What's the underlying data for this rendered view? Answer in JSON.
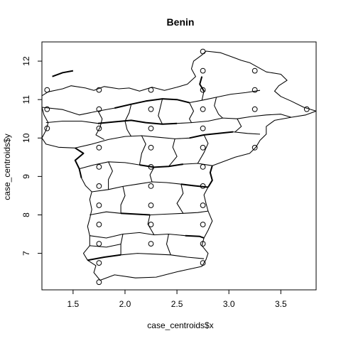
{
  "chart_data": {
    "type": "scatter",
    "title": "Benin",
    "xlabel": "case_centroids$x",
    "ylabel": "case_centroids$y",
    "xlim": [
      1.2,
      3.84
    ],
    "ylim": [
      6.05,
      12.5
    ],
    "xticks": [
      1.5,
      2.0,
      2.5,
      3.0,
      3.5
    ],
    "xtick_labels": [
      "1.5",
      "2.0",
      "2.5",
      "3.0",
      "3.5"
    ],
    "yticks": [
      7,
      8,
      9,
      10,
      11,
      12
    ],
    "ytick_labels": [
      "7",
      "8",
      "9",
      "10",
      "11",
      "12"
    ],
    "grid": false,
    "legend": "none",
    "points": [
      {
        "x": 2.75,
        "y": 12.25
      },
      {
        "x": 2.75,
        "y": 11.75
      },
      {
        "x": 3.25,
        "y": 11.75
      },
      {
        "x": 1.25,
        "y": 11.25
      },
      {
        "x": 1.75,
        "y": 11.25
      },
      {
        "x": 2.25,
        "y": 11.25
      },
      {
        "x": 2.75,
        "y": 11.25
      },
      {
        "x": 3.25,
        "y": 11.25
      },
      {
        "x": 1.25,
        "y": 10.75
      },
      {
        "x": 1.75,
        "y": 10.75
      },
      {
        "x": 2.25,
        "y": 10.75
      },
      {
        "x": 2.75,
        "y": 10.75
      },
      {
        "x": 3.25,
        "y": 10.75
      },
      {
        "x": 3.75,
        "y": 10.75
      },
      {
        "x": 1.25,
        "y": 10.25
      },
      {
        "x": 1.75,
        "y": 10.25
      },
      {
        "x": 2.25,
        "y": 10.25
      },
      {
        "x": 2.75,
        "y": 10.25
      },
      {
        "x": 1.75,
        "y": 9.75
      },
      {
        "x": 2.25,
        "y": 9.75
      },
      {
        "x": 2.75,
        "y": 9.75
      },
      {
        "x": 3.25,
        "y": 9.75
      },
      {
        "x": 1.75,
        "y": 9.25
      },
      {
        "x": 2.25,
        "y": 9.25
      },
      {
        "x": 2.75,
        "y": 9.25
      },
      {
        "x": 1.75,
        "y": 8.75
      },
      {
        "x": 2.25,
        "y": 8.75
      },
      {
        "x": 2.75,
        "y": 8.75
      },
      {
        "x": 1.75,
        "y": 8.25
      },
      {
        "x": 2.25,
        "y": 8.25
      },
      {
        "x": 2.75,
        "y": 8.25
      },
      {
        "x": 1.75,
        "y": 7.75
      },
      {
        "x": 2.25,
        "y": 7.75
      },
      {
        "x": 2.75,
        "y": 7.75
      },
      {
        "x": 1.75,
        "y": 7.25
      },
      {
        "x": 2.25,
        "y": 7.25
      },
      {
        "x": 2.75,
        "y": 7.25
      },
      {
        "x": 1.75,
        "y": 6.75
      },
      {
        "x": 2.75,
        "y": 6.75
      },
      {
        "x": 1.75,
        "y": 6.25
      }
    ],
    "boundaries": [
      [
        [
          1.2,
          11.1
        ],
        [
          1.26,
          11.2
        ],
        [
          1.4,
          11.28
        ],
        [
          1.48,
          11.36
        ],
        [
          1.62,
          11.3
        ],
        [
          1.7,
          11.24
        ],
        [
          1.8,
          11.34
        ],
        [
          1.94,
          11.28
        ],
        [
          2.04,
          11.3
        ],
        [
          2.14,
          11.22
        ],
        [
          2.26,
          11.32
        ],
        [
          2.38,
          11.24
        ],
        [
          2.5,
          11.32
        ],
        [
          2.6,
          11.4
        ],
        [
          2.68,
          11.6
        ],
        [
          2.64,
          11.8
        ],
        [
          2.66,
          12.0
        ],
        [
          2.74,
          12.16
        ],
        [
          2.78,
          12.26
        ],
        [
          2.92,
          12.22
        ],
        [
          3.04,
          12.1
        ],
        [
          3.12,
          12.02
        ],
        [
          3.2,
          11.96
        ],
        [
          3.28,
          11.84
        ],
        [
          3.36,
          11.72
        ],
        [
          3.5,
          11.66
        ],
        [
          3.56,
          11.5
        ],
        [
          3.48,
          11.36
        ],
        [
          3.44,
          11.22
        ],
        [
          3.5,
          11.08
        ],
        [
          3.6,
          10.96
        ],
        [
          3.72,
          10.8
        ],
        [
          3.84,
          10.7
        ],
        [
          3.74,
          10.6
        ],
        [
          3.6,
          10.54
        ],
        [
          3.44,
          10.46
        ],
        [
          3.36,
          10.3
        ],
        [
          3.36,
          10.1
        ],
        [
          3.3,
          9.94
        ],
        [
          3.26,
          9.76
        ],
        [
          3.2,
          9.6
        ],
        [
          3.06,
          9.5
        ],
        [
          2.96,
          9.4
        ],
        [
          2.84,
          9.28
        ],
        [
          2.82,
          9.1
        ],
        [
          2.84,
          8.9
        ],
        [
          2.8,
          8.72
        ],
        [
          2.76,
          8.52
        ],
        [
          2.78,
          8.3
        ],
        [
          2.8,
          8.1
        ],
        [
          2.84,
          7.84
        ],
        [
          2.8,
          7.6
        ],
        [
          2.76,
          7.4
        ],
        [
          2.74,
          7.2
        ],
        [
          2.8,
          7.0
        ],
        [
          2.78,
          6.84
        ],
        [
          2.74,
          6.66
        ],
        [
          2.5,
          6.52
        ],
        [
          2.3,
          6.38
        ],
        [
          2.1,
          6.36
        ],
        [
          1.9,
          6.44
        ],
        [
          1.76,
          6.3
        ],
        [
          1.7,
          6.5
        ],
        [
          1.72,
          6.68
        ],
        [
          1.64,
          6.82
        ],
        [
          1.6,
          7.0
        ],
        [
          1.66,
          7.2
        ],
        [
          1.66,
          7.46
        ],
        [
          1.64,
          7.7
        ],
        [
          1.66,
          7.9
        ],
        [
          1.68,
          8.14
        ],
        [
          1.66,
          8.4
        ],
        [
          1.68,
          8.6
        ],
        [
          1.62,
          8.76
        ],
        [
          1.58,
          8.96
        ],
        [
          1.56,
          9.2
        ],
        [
          1.52,
          9.42
        ],
        [
          1.6,
          9.6
        ],
        [
          1.52,
          9.74
        ],
        [
          1.36,
          9.76
        ],
        [
          1.24,
          9.84
        ],
        [
          1.2,
          10.0
        ],
        [
          1.24,
          10.2
        ],
        [
          1.26,
          10.4
        ],
        [
          1.22,
          10.6
        ],
        [
          1.2,
          10.8
        ],
        [
          1.2,
          11.1
        ]
      ],
      [
        [
          1.2,
          10.8
        ],
        [
          1.4,
          10.74
        ],
        [
          1.56,
          10.6
        ],
        [
          1.74,
          10.7
        ],
        [
          1.9,
          10.78
        ],
        [
          2.06,
          10.88
        ],
        [
          2.2,
          10.96
        ],
        [
          2.36,
          11.02
        ],
        [
          2.5,
          11.0
        ],
        [
          2.62,
          10.92
        ],
        [
          2.74,
          10.98
        ],
        [
          2.88,
          11.06
        ],
        [
          3.02,
          11.14
        ],
        [
          3.16,
          11.18
        ],
        [
          3.3,
          11.24
        ]
      ],
      [
        [
          1.24,
          10.4
        ],
        [
          1.4,
          10.44
        ],
        [
          1.58,
          10.44
        ],
        [
          1.74,
          10.38
        ],
        [
          1.9,
          10.42
        ],
        [
          2.06,
          10.46
        ],
        [
          2.2,
          10.4
        ],
        [
          2.36,
          10.36
        ],
        [
          2.5,
          10.38
        ],
        [
          2.64,
          10.4
        ],
        [
          2.8,
          10.44
        ],
        [
          2.94,
          10.52
        ],
        [
          3.08,
          10.5
        ],
        [
          3.22,
          10.56
        ],
        [
          3.36,
          10.6
        ],
        [
          3.5,
          10.62
        ],
        [
          3.6,
          10.54
        ]
      ],
      [
        [
          1.52,
          9.74
        ],
        [
          1.68,
          9.84
        ],
        [
          1.84,
          9.96
        ],
        [
          2.0,
          10.04
        ],
        [
          2.16,
          10.06
        ],
        [
          2.32,
          10.02
        ],
        [
          2.48,
          9.98
        ],
        [
          2.62,
          10.0
        ],
        [
          2.76,
          10.08
        ],
        [
          2.9,
          10.12
        ],
        [
          3.04,
          10.16
        ],
        [
          3.18,
          10.12
        ],
        [
          3.3,
          10.1
        ]
      ],
      [
        [
          1.56,
          9.2
        ],
        [
          1.7,
          9.3
        ],
        [
          1.84,
          9.38
        ],
        [
          2.0,
          9.36
        ],
        [
          2.14,
          9.3
        ],
        [
          2.28,
          9.24
        ],
        [
          2.42,
          9.26
        ],
        [
          2.56,
          9.32
        ],
        [
          2.7,
          9.34
        ],
        [
          2.84,
          9.28
        ]
      ],
      [
        [
          1.68,
          8.6
        ],
        [
          1.84,
          8.66
        ],
        [
          1.98,
          8.74
        ],
        [
          2.12,
          8.8
        ],
        [
          2.26,
          8.86
        ],
        [
          2.4,
          8.84
        ],
        [
          2.54,
          8.8
        ],
        [
          2.66,
          8.76
        ],
        [
          2.8,
          8.72
        ]
      ],
      [
        [
          1.66,
          8.0
        ],
        [
          1.82,
          8.08
        ],
        [
          1.96,
          8.04
        ],
        [
          2.1,
          8.02
        ],
        [
          2.24,
          8.0
        ],
        [
          2.4,
          8.02
        ],
        [
          2.56,
          8.04
        ],
        [
          2.7,
          8.06
        ],
        [
          2.8,
          8.1
        ]
      ],
      [
        [
          1.66,
          7.46
        ],
        [
          1.82,
          7.4
        ],
        [
          1.98,
          7.5
        ],
        [
          2.14,
          7.54
        ],
        [
          2.28,
          7.48
        ],
        [
          2.42,
          7.5
        ],
        [
          2.58,
          7.46
        ],
        [
          2.72,
          7.44
        ]
      ],
      [
        [
          1.64,
          6.82
        ],
        [
          1.8,
          6.9
        ],
        [
          1.96,
          6.96
        ],
        [
          2.12,
          7.0
        ],
        [
          2.28,
          6.98
        ],
        [
          2.44,
          6.96
        ],
        [
          2.6,
          6.9
        ],
        [
          2.76,
          6.86
        ]
      ],
      [
        [
          1.74,
          10.7
        ],
        [
          1.78,
          10.5
        ],
        [
          1.76,
          10.28
        ],
        [
          1.72,
          10.08
        ],
        [
          1.8,
          9.96
        ]
      ],
      [
        [
          2.06,
          10.88
        ],
        [
          2.04,
          10.66
        ],
        [
          2.0,
          10.44
        ],
        [
          2.02,
          10.22
        ],
        [
          2.06,
          10.04
        ]
      ],
      [
        [
          2.36,
          11.02
        ],
        [
          2.34,
          10.8
        ],
        [
          2.32,
          10.58
        ],
        [
          2.36,
          10.36
        ]
      ],
      [
        [
          2.62,
          10.92
        ],
        [
          2.66,
          10.7
        ],
        [
          2.62,
          10.5
        ],
        [
          2.64,
          10.4
        ]
      ],
      [
        [
          2.88,
          11.06
        ],
        [
          2.86,
          10.84
        ],
        [
          2.9,
          10.62
        ],
        [
          2.94,
          10.52
        ]
      ],
      [
        [
          3.08,
          10.5
        ],
        [
          3.12,
          10.3
        ],
        [
          3.06,
          10.16
        ]
      ],
      [
        [
          2.74,
          11.6
        ],
        [
          2.72,
          11.4
        ],
        [
          2.76,
          11.22
        ],
        [
          2.74,
          10.98
        ]
      ],
      [
        [
          2.16,
          10.06
        ],
        [
          2.2,
          9.84
        ],
        [
          2.16,
          9.6
        ],
        [
          2.14,
          9.3
        ]
      ],
      [
        [
          2.48,
          9.98
        ],
        [
          2.46,
          9.76
        ],
        [
          2.5,
          9.52
        ],
        [
          2.42,
          9.26
        ]
      ],
      [
        [
          2.76,
          10.08
        ],
        [
          2.8,
          9.86
        ],
        [
          2.76,
          9.62
        ],
        [
          2.7,
          9.34
        ]
      ],
      [
        [
          1.84,
          9.38
        ],
        [
          1.88,
          9.14
        ],
        [
          1.84,
          8.92
        ],
        [
          1.84,
          8.66
        ]
      ],
      [
        [
          2.28,
          9.24
        ],
        [
          2.24,
          9.04
        ],
        [
          2.26,
          8.86
        ]
      ],
      [
        [
          2.54,
          8.8
        ],
        [
          2.56,
          8.56
        ],
        [
          2.5,
          8.3
        ],
        [
          2.56,
          8.04
        ]
      ],
      [
        [
          1.98,
          8.74
        ],
        [
          2.0,
          8.5
        ],
        [
          1.96,
          8.26
        ],
        [
          1.96,
          8.04
        ]
      ],
      [
        [
          1.98,
          7.5
        ],
        [
          1.96,
          7.24
        ],
        [
          1.96,
          6.96
        ]
      ],
      [
        [
          2.42,
          7.5
        ],
        [
          2.4,
          7.24
        ],
        [
          2.44,
          6.96
        ]
      ],
      [
        [
          2.24,
          8.0
        ],
        [
          2.22,
          7.76
        ],
        [
          2.28,
          7.48
        ]
      ],
      [
        [
          1.66,
          7.2
        ],
        [
          1.82,
          7.16
        ],
        [
          1.96,
          7.24
        ]
      ]
    ],
    "thick_borders": [
      [
        [
          1.3,
          11.6
        ],
        [
          1.4,
          11.7
        ],
        [
          1.5,
          11.75
        ]
      ],
      [
        [
          2.62,
          10.92
        ],
        [
          2.5,
          11.0
        ],
        [
          2.36,
          11.02
        ],
        [
          2.2,
          10.96
        ],
        [
          2.06,
          10.88
        ],
        [
          1.9,
          10.78
        ]
      ],
      [
        [
          1.74,
          10.38
        ],
        [
          1.9,
          10.42
        ],
        [
          2.06,
          10.46
        ],
        [
          2.2,
          10.4
        ],
        [
          2.36,
          10.36
        ],
        [
          2.5,
          10.38
        ]
      ],
      [
        [
          2.62,
          10.0
        ],
        [
          2.76,
          10.08
        ],
        [
          2.9,
          10.12
        ],
        [
          3.04,
          10.16
        ]
      ],
      [
        [
          2.14,
          9.3
        ],
        [
          2.28,
          9.24
        ],
        [
          2.42,
          9.26
        ],
        [
          2.56,
          9.32
        ]
      ],
      [
        [
          2.54,
          8.8
        ],
        [
          2.66,
          8.76
        ],
        [
          2.8,
          8.72
        ]
      ],
      [
        [
          1.96,
          8.04
        ],
        [
          2.1,
          8.02
        ],
        [
          2.24,
          8.0
        ]
      ],
      [
        [
          2.58,
          7.46
        ],
        [
          2.72,
          7.44
        ],
        [
          2.76,
          7.4
        ]
      ],
      [
        [
          1.64,
          6.82
        ],
        [
          1.8,
          6.9
        ],
        [
          1.96,
          6.96
        ]
      ],
      [
        [
          1.58,
          8.96
        ],
        [
          1.56,
          9.2
        ],
        [
          1.52,
          9.42
        ],
        [
          1.6,
          9.6
        ],
        [
          1.52,
          9.74
        ]
      ],
      [
        [
          2.84,
          9.28
        ],
        [
          2.82,
          9.1
        ],
        [
          2.84,
          8.9
        ],
        [
          2.8,
          8.72
        ]
      ],
      [
        [
          2.74,
          11.6
        ],
        [
          2.72,
          11.4
        ],
        [
          2.76,
          11.22
        ]
      ]
    ]
  }
}
